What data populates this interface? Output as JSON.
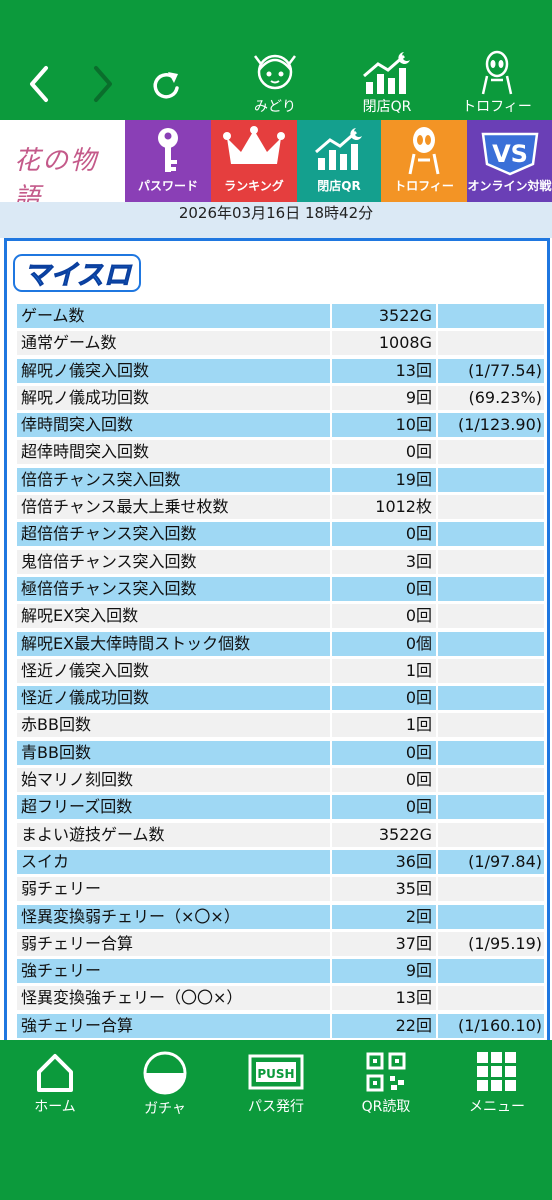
{
  "topbar": {
    "items": [
      {
        "label": "みどり",
        "icon": "character-icon"
      },
      {
        "label": "閉店QR",
        "icon": "chart-moon-icon"
      },
      {
        "label": "トロフィー",
        "icon": "alien-trophy-icon"
      }
    ]
  },
  "menu": {
    "logo_text": "花の物語",
    "tiles": [
      {
        "label": "パスワード",
        "color": "#8a3fb6",
        "icon": "key-icon"
      },
      {
        "label": "ランキング",
        "color": "#e53e3e",
        "icon": "crown-icon"
      },
      {
        "label": "閉店QR",
        "color": "#14a08e",
        "icon": "chart-moon-icon"
      },
      {
        "label": "トロフィー",
        "color": "#f39425",
        "icon": "alien-icon"
      },
      {
        "label": "オンライン対戦",
        "color": "#6a3fb6",
        "icon": "vs-online-icon"
      }
    ]
  },
  "date": "2026年03月16日 18時42分",
  "myslo_logo": "マイスロ",
  "stats": [
    {
      "label": "ゲーム数",
      "value": "3522G",
      "extra": ""
    },
    {
      "label": "通常ゲーム数",
      "value": "1008G",
      "extra": ""
    },
    {
      "label": "解呪ノ儀突入回数",
      "value": "13回",
      "extra": "(1/77.54)"
    },
    {
      "label": "解呪ノ儀成功回数",
      "value": "9回",
      "extra": "(69.23%)"
    },
    {
      "label": "倖時間突入回数",
      "value": "10回",
      "extra": "(1/123.90)"
    },
    {
      "label": "超倖時間突入回数",
      "value": "0回",
      "extra": ""
    },
    {
      "label": "倍倍チャンス突入回数",
      "value": "19回",
      "extra": ""
    },
    {
      "label": "倍倍チャンス最大上乗せ枚数",
      "value": "1012枚",
      "extra": ""
    },
    {
      "label": "超倍倍チャンス突入回数",
      "value": "0回",
      "extra": ""
    },
    {
      "label": "鬼倍倍チャンス突入回数",
      "value": "3回",
      "extra": ""
    },
    {
      "label": "極倍倍チャンス突入回数",
      "value": "0回",
      "extra": ""
    },
    {
      "label": "解呪EX突入回数",
      "value": "0回",
      "extra": ""
    },
    {
      "label": "解呪EX最大倖時間ストック個数",
      "value": "0個",
      "extra": ""
    },
    {
      "label": "怪近ノ儀突入回数",
      "value": "1回",
      "extra": ""
    },
    {
      "label": "怪近ノ儀成功回数",
      "value": "0回",
      "extra": ""
    },
    {
      "label": "赤BB回数",
      "value": "1回",
      "extra": ""
    },
    {
      "label": "青BB回数",
      "value": "0回",
      "extra": ""
    },
    {
      "label": "始マリノ刻回数",
      "value": "0回",
      "extra": ""
    },
    {
      "label": "超フリーズ回数",
      "value": "0回",
      "extra": ""
    },
    {
      "label": "まよい遊技ゲーム数",
      "value": "3522G",
      "extra": ""
    },
    {
      "label": "スイカ",
      "value": "36回",
      "extra": "(1/97.84)"
    },
    {
      "label": "弱チェリー",
      "value": "35回",
      "extra": ""
    },
    {
      "label": "怪異変換弱チェリー（×〇×）",
      "value": "2回",
      "extra": ""
    },
    {
      "label": "弱チェリー合算",
      "value": "37回",
      "extra": "(1/95.19)"
    },
    {
      "label": "強チェリー",
      "value": "9回",
      "extra": ""
    },
    {
      "label": "怪異変換強チェリー（〇〇×）",
      "value": "13回",
      "extra": ""
    },
    {
      "label": "強チェリー合算",
      "value": "22回",
      "extra": "(1/160.10)"
    }
  ],
  "bottombar": {
    "items": [
      {
        "label": "ホーム",
        "icon": "home-icon"
      },
      {
        "label": "ガチャ",
        "icon": "gacha-ball-icon"
      },
      {
        "label": "パス発行",
        "icon": "push-icon",
        "icon_text": "PUSH"
      },
      {
        "label": "QR読取",
        "icon": "qr-code-icon"
      },
      {
        "label": "メニュー",
        "icon": "grid-menu-icon"
      }
    ]
  },
  "colors": {
    "green": "#0c9a3c",
    "row_blue": "#9fd8f4",
    "row_gray": "#f1f1f1",
    "panel_border": "#1f77e0"
  }
}
